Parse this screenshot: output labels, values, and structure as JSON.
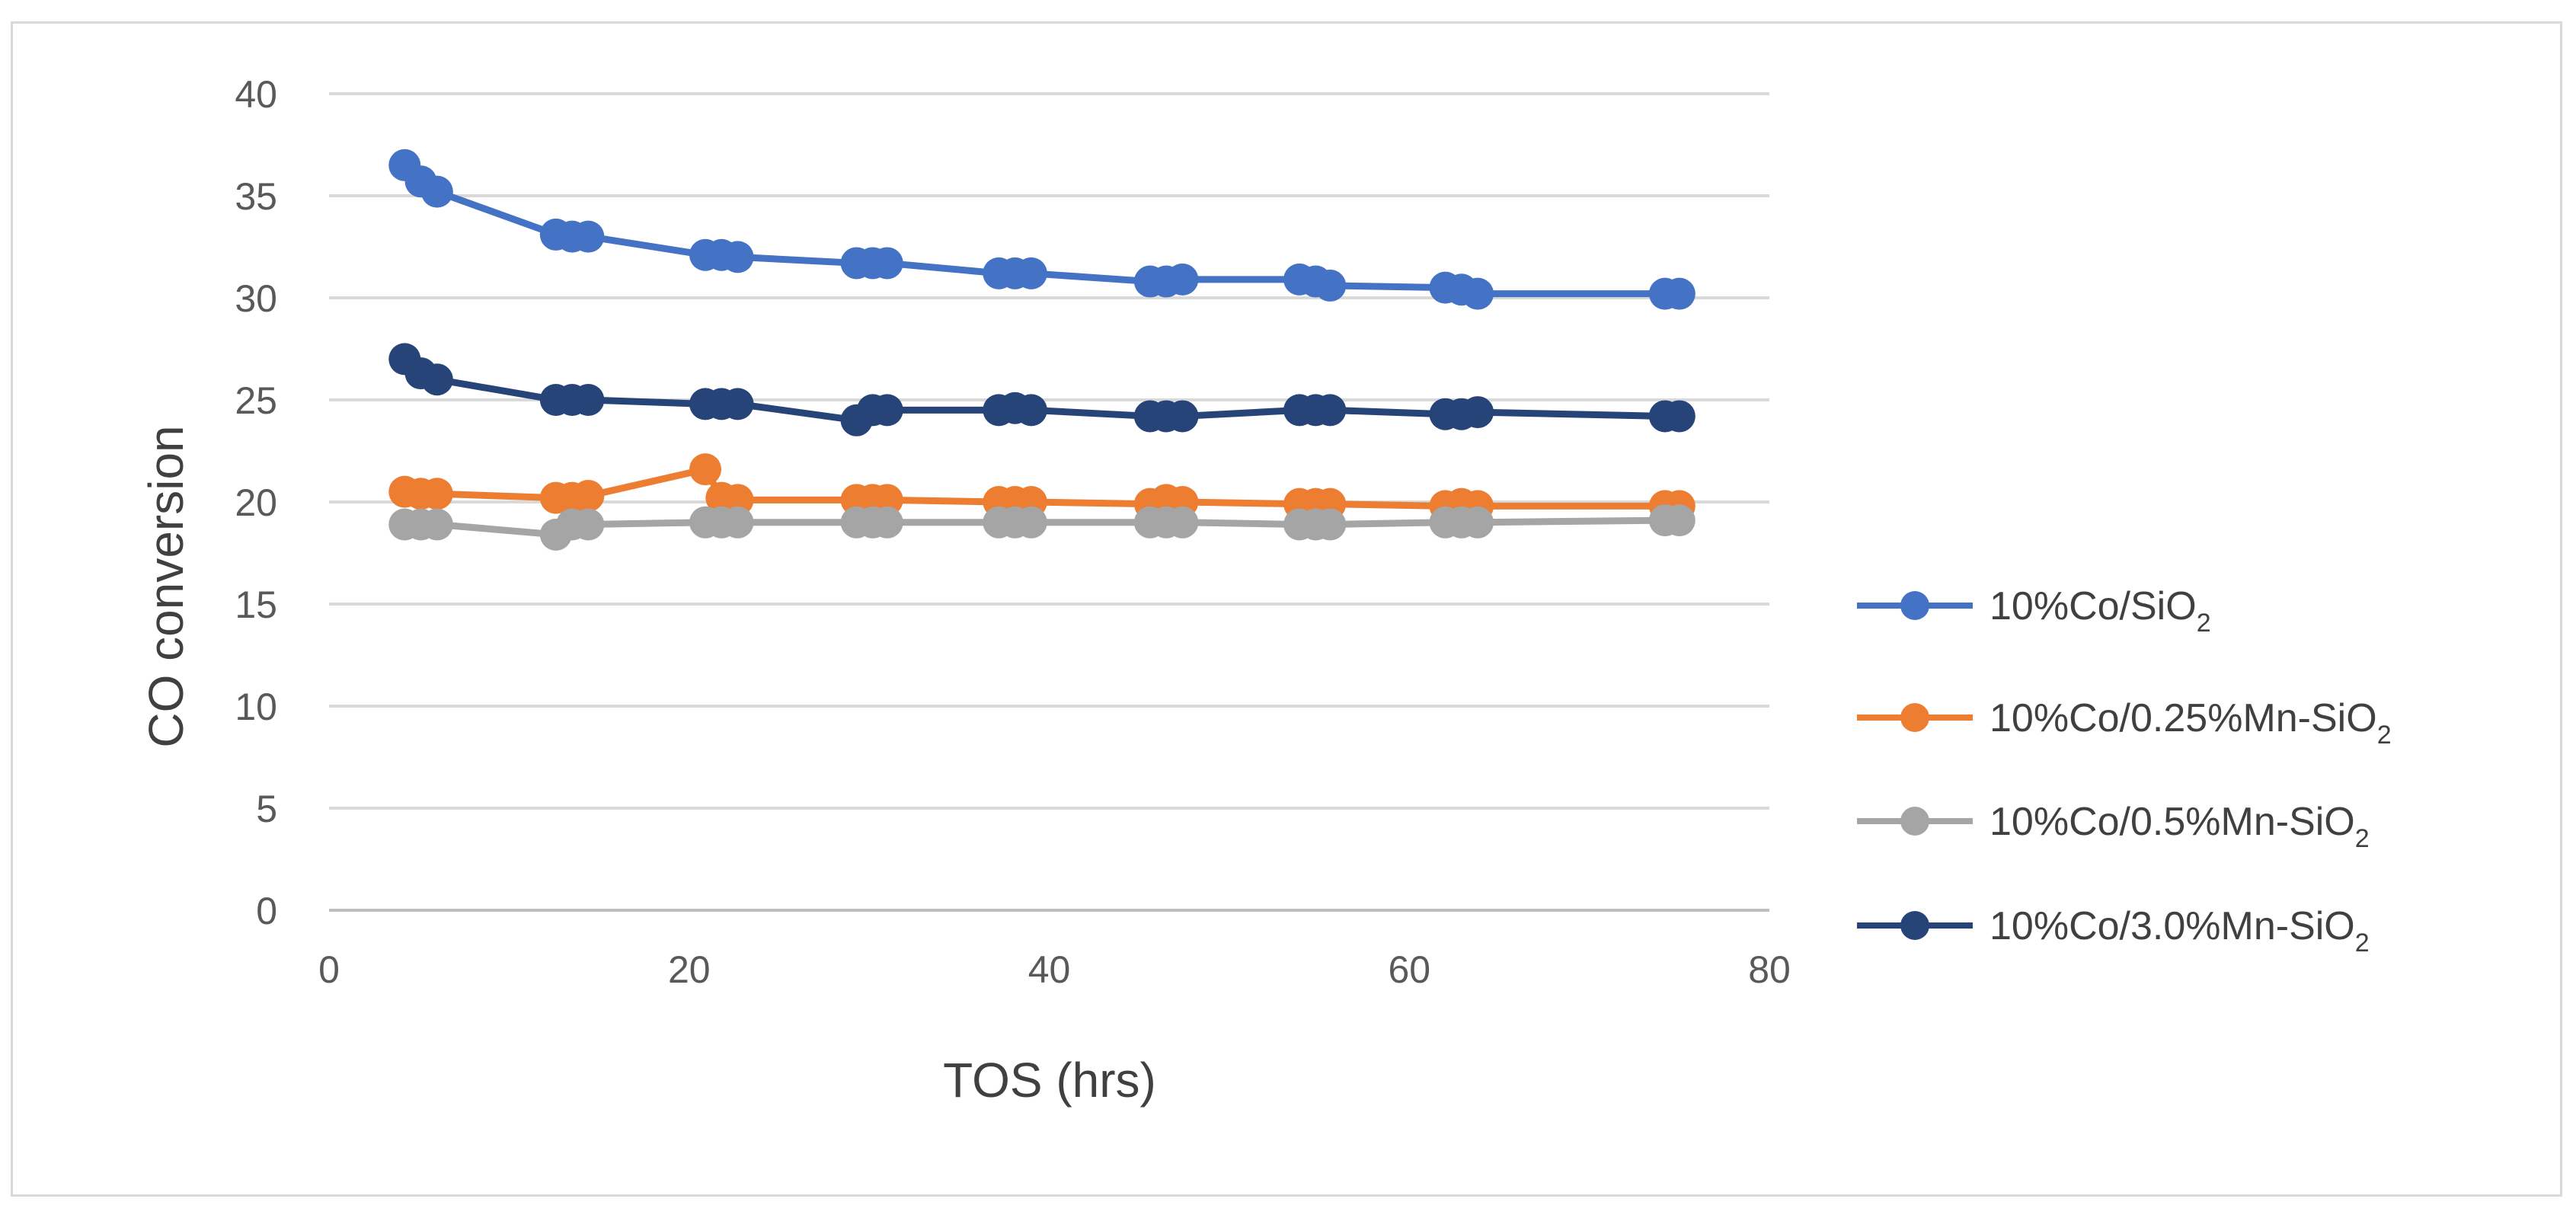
{
  "chart_data": {
    "type": "scatter",
    "title": "",
    "xlabel": "TOS (hrs)",
    "ylabel": "CO conversion",
    "xlim": [
      0,
      80
    ],
    "ylim": [
      0,
      40
    ],
    "xticks": [
      0,
      20,
      40,
      60,
      80
    ],
    "yticks": [
      0,
      5,
      10,
      15,
      20,
      25,
      30,
      35,
      40
    ],
    "grid": "horizontal",
    "legend_position": "right",
    "series": [
      {
        "name": "10%Co/SiO2",
        "label_main": "10%Co/SiO",
        "label_sub": "2",
        "color": "#4472c4",
        "x": [
          4.2,
          5.1,
          6.0,
          12.6,
          13.5,
          14.4,
          20.9,
          21.8,
          22.7,
          29.3,
          30.2,
          31.0,
          37.2,
          38.1,
          39.0,
          45.6,
          46.5,
          47.4,
          53.9,
          54.8,
          55.6,
          62.0,
          62.9,
          63.8,
          74.2,
          75.0
        ],
        "y": [
          36.5,
          35.7,
          35.2,
          33.1,
          33.0,
          33.0,
          32.1,
          32.1,
          32.0,
          31.7,
          31.7,
          31.7,
          31.2,
          31.2,
          31.2,
          30.8,
          30.8,
          30.9,
          30.9,
          30.8,
          30.6,
          30.5,
          30.4,
          30.2,
          30.2,
          30.2
        ]
      },
      {
        "name": "10%Co/0.25%Mn-SiO2",
        "label_main": "10%Co/0.25%Mn-SiO",
        "label_sub": "2",
        "color": "#ed7d31",
        "x": [
          4.2,
          5.1,
          6.0,
          12.6,
          13.5,
          14.4,
          20.9,
          21.8,
          22.7,
          29.3,
          30.2,
          31.0,
          37.2,
          38.1,
          39.0,
          45.6,
          46.5,
          47.4,
          53.9,
          54.8,
          55.6,
          62.0,
          62.9,
          63.8,
          74.2,
          75.0
        ],
        "y": [
          20.5,
          20.4,
          20.4,
          20.2,
          20.2,
          20.3,
          21.6,
          20.2,
          20.1,
          20.1,
          20.1,
          20.1,
          20.0,
          20.0,
          20.0,
          19.9,
          20.1,
          20.0,
          19.9,
          19.9,
          19.9,
          19.8,
          19.9,
          19.8,
          19.8,
          19.8
        ]
      },
      {
        "name": "10%Co/0.5%Mn-SiO2",
        "label_main": "10%Co/0.5%Mn-SiO",
        "label_sub": "2",
        "color": "#a5a5a5",
        "x": [
          4.2,
          5.1,
          6.0,
          12.6,
          13.5,
          14.4,
          20.9,
          21.8,
          22.7,
          29.3,
          30.2,
          31.0,
          37.2,
          38.1,
          39.0,
          45.6,
          46.5,
          47.4,
          53.9,
          54.8,
          55.6,
          62.0,
          62.9,
          63.8,
          74.2,
          75.0
        ],
        "y": [
          18.9,
          18.9,
          18.9,
          18.4,
          18.9,
          18.9,
          19.0,
          19.0,
          19.0,
          19.0,
          19.0,
          19.0,
          19.0,
          19.0,
          19.0,
          19.0,
          19.0,
          19.0,
          18.9,
          18.9,
          18.9,
          19.0,
          19.0,
          19.0,
          19.1,
          19.1
        ]
      },
      {
        "name": "10%Co/3.0%Mn-SiO2",
        "label_main": "10%Co/3.0%Mn-SiO",
        "label_sub": "2",
        "color": "#264478",
        "x": [
          4.2,
          5.1,
          6.0,
          12.6,
          13.5,
          14.4,
          20.9,
          21.8,
          22.7,
          29.3,
          30.2,
          31.0,
          37.2,
          38.1,
          39.0,
          45.6,
          46.5,
          47.4,
          53.9,
          54.8,
          55.6,
          62.0,
          62.9,
          63.8,
          74.2,
          75.0
        ],
        "y": [
          27.0,
          26.3,
          26.0,
          25.0,
          25.0,
          25.0,
          24.8,
          24.8,
          24.8,
          24.0,
          24.5,
          24.5,
          24.5,
          24.6,
          24.5,
          24.2,
          24.2,
          24.2,
          24.5,
          24.5,
          24.5,
          24.3,
          24.3,
          24.4,
          24.2,
          24.2
        ]
      }
    ]
  }
}
